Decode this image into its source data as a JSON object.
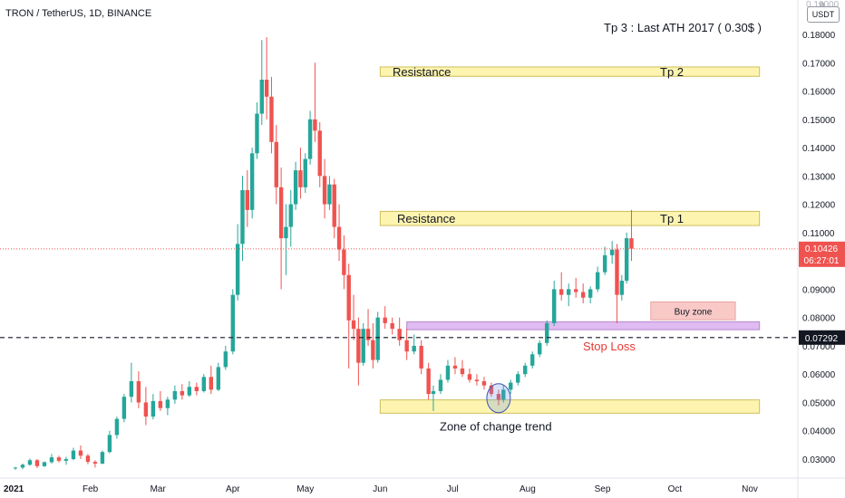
{
  "header": {
    "symbol_title": "TRON / TetherUS, 1D, BINANCE",
    "currency_badge": "USDT"
  },
  "annotations": {
    "tp3": "Tp 3 : Last ATH 2017 ( 0.30$ )",
    "resistance_top_label": "Resistance",
    "tp2": "Tp 2",
    "resistance_mid_label": "Resistance",
    "tp1": "Tp 1",
    "buy_zone": "Buy zone",
    "stop_loss": "Stop Loss",
    "zone_change": "Zone of change trend"
  },
  "colors": {
    "up": "#26a69a",
    "down": "#ef5350",
    "zone_fill": "#fdf3a8",
    "zone_stroke": "#c9b84a",
    "support_fill": "#dcb4f0",
    "buy_fill": "#f8c4c2",
    "stop_text": "#e53935",
    "last_price_bg": "#ef5350",
    "dashed_bg": "#131722"
  },
  "chart_data": {
    "type": "candlestick",
    "y_axis": {
      "min": 0.025,
      "max": 0.19,
      "ticks": [
        "0.18000",
        "0.17000",
        "0.16000",
        "0.15000",
        "0.14000",
        "0.13000",
        "0.12000",
        "0.11000",
        "0.09000",
        "0.08000",
        "0.07000",
        "0.06000",
        "0.05000",
        "0.04000",
        "0.03000"
      ],
      "top_partial_tick": "0.19000"
    },
    "x_axis": {
      "labels": [
        "2021",
        "Feb",
        "Mar",
        "Apr",
        "May",
        "Jun",
        "Jul",
        "Aug",
        "Sep",
        "Oct",
        "Nov"
      ],
      "label_dates": [
        "2021-01-01",
        "2021-02-01",
        "2021-03-01",
        "2021-04-01",
        "2021-05-01",
        "2021-06-01",
        "2021-07-01",
        "2021-08-01",
        "2021-09-01",
        "2021-10-01",
        "2021-11-01"
      ],
      "start": "2021-01-01",
      "end": "2021-11-19"
    },
    "zones": [
      {
        "name": "resistance-tp2",
        "from": 0.1652,
        "to": 0.1685,
        "start": "2021-06-01",
        "end": "2021-11-05"
      },
      {
        "name": "resistance-tp1",
        "from": 0.1125,
        "to": 0.1175,
        "start": "2021-06-01",
        "end": "2021-11-05"
      },
      {
        "name": "buy-zone",
        "from": 0.0792,
        "to": 0.0855,
        "start": "2021-09-21",
        "end": "2021-10-26"
      },
      {
        "name": "support-band",
        "from": 0.0757,
        "to": 0.0785,
        "start": "2021-06-12",
        "end": "2021-11-05"
      },
      {
        "name": "zone-of-change-trend",
        "from": 0.0462,
        "to": 0.0509,
        "start": "2021-06-01",
        "end": "2021-11-05"
      }
    ],
    "last_price": {
      "value": 0.10426,
      "label": "0.10426",
      "countdown": "06:27:01"
    },
    "dashed_level": {
      "value": 0.07292,
      "label": "0.07292"
    },
    "circle_marker": {
      "date": "2021-07-20",
      "price": 0.0515
    },
    "candles": [
      [
        "2021-01-01",
        0.0268,
        0.0272,
        0.0262,
        0.027
      ],
      [
        "2021-01-04",
        0.027,
        0.0284,
        0.0264,
        0.028
      ],
      [
        "2021-01-07",
        0.028,
        0.0302,
        0.0276,
        0.0296
      ],
      [
        "2021-01-10",
        0.0296,
        0.03,
        0.0268,
        0.0275
      ],
      [
        "2021-01-13",
        0.0275,
        0.0292,
        0.0272,
        0.0289
      ],
      [
        "2021-01-16",
        0.0289,
        0.0318,
        0.0284,
        0.0306
      ],
      [
        "2021-01-19",
        0.0306,
        0.0312,
        0.0288,
        0.0294
      ],
      [
        "2021-01-22",
        0.0294,
        0.0308,
        0.028,
        0.03
      ],
      [
        "2021-01-25",
        0.03,
        0.034,
        0.0296,
        0.033
      ],
      [
        "2021-01-28",
        0.033,
        0.0348,
        0.03,
        0.0312
      ],
      [
        "2021-01-31",
        0.0312,
        0.0318,
        0.0282,
        0.029
      ],
      [
        "2021-02-03",
        0.029,
        0.0296,
        0.027,
        0.0284
      ],
      [
        "2021-02-06",
        0.0284,
        0.033,
        0.0282,
        0.0325
      ],
      [
        "2021-02-09",
        0.0325,
        0.04,
        0.032,
        0.0385
      ],
      [
        "2021-02-12",
        0.0385,
        0.045,
        0.0372,
        0.0442
      ],
      [
        "2021-02-15",
        0.0442,
        0.053,
        0.043,
        0.052
      ],
      [
        "2021-02-18",
        0.052,
        0.064,
        0.05,
        0.0575
      ],
      [
        "2021-02-21",
        0.0575,
        0.061,
        0.048,
        0.05
      ],
      [
        "2021-02-24",
        0.05,
        0.0555,
        0.042,
        0.045
      ],
      [
        "2021-02-27",
        0.045,
        0.053,
        0.044,
        0.0505
      ],
      [
        "2021-03-02",
        0.0505,
        0.054,
        0.047,
        0.048
      ],
      [
        "2021-03-05",
        0.048,
        0.052,
        0.0455,
        0.051
      ],
      [
        "2021-03-08",
        0.051,
        0.056,
        0.0495,
        0.054
      ],
      [
        "2021-03-11",
        0.054,
        0.0565,
        0.051,
        0.0525
      ],
      [
        "2021-03-14",
        0.0525,
        0.0575,
        0.052,
        0.0555
      ],
      [
        "2021-03-17",
        0.0555,
        0.057,
        0.0525,
        0.054
      ],
      [
        "2021-03-20",
        0.054,
        0.06,
        0.0535,
        0.059
      ],
      [
        "2021-03-23",
        0.059,
        0.063,
        0.053,
        0.0545
      ],
      [
        "2021-03-26",
        0.0545,
        0.064,
        0.054,
        0.0625
      ],
      [
        "2021-03-29",
        0.0625,
        0.07,
        0.0615,
        0.068
      ],
      [
        "2021-04-01",
        0.068,
        0.09,
        0.067,
        0.088
      ],
      [
        "2021-04-03",
        0.088,
        0.113,
        0.086,
        0.106
      ],
      [
        "2021-04-05",
        0.106,
        0.13,
        0.1,
        0.125
      ],
      [
        "2021-04-07",
        0.125,
        0.132,
        0.112,
        0.118
      ],
      [
        "2021-04-09",
        0.118,
        0.14,
        0.115,
        0.138
      ],
      [
        "2021-04-11",
        0.138,
        0.156,
        0.136,
        0.152
      ],
      [
        "2021-04-13",
        0.152,
        0.178,
        0.148,
        0.164
      ],
      [
        "2021-04-15",
        0.164,
        0.179,
        0.15,
        0.158
      ],
      [
        "2021-04-17",
        0.158,
        0.165,
        0.138,
        0.142
      ],
      [
        "2021-04-19",
        0.142,
        0.148,
        0.12,
        0.126
      ],
      [
        "2021-04-21",
        0.126,
        0.133,
        0.09,
        0.108
      ],
      [
        "2021-04-23",
        0.108,
        0.12,
        0.095,
        0.112
      ],
      [
        "2021-04-25",
        0.112,
        0.125,
        0.105,
        0.12
      ],
      [
        "2021-04-27",
        0.12,
        0.135,
        0.118,
        0.132
      ],
      [
        "2021-04-29",
        0.132,
        0.14,
        0.122,
        0.126
      ],
      [
        "2021-05-01",
        0.126,
        0.138,
        0.124,
        0.136
      ],
      [
        "2021-05-03",
        0.136,
        0.153,
        0.134,
        0.15
      ],
      [
        "2021-05-05",
        0.15,
        0.17,
        0.142,
        0.146
      ],
      [
        "2021-05-07",
        0.146,
        0.149,
        0.126,
        0.13
      ],
      [
        "2021-05-09",
        0.13,
        0.136,
        0.115,
        0.12
      ],
      [
        "2021-05-11",
        0.12,
        0.13,
        0.118,
        0.127
      ],
      [
        "2021-05-13",
        0.127,
        0.129,
        0.108,
        0.112
      ],
      [
        "2021-05-15",
        0.112,
        0.12,
        0.1,
        0.104
      ],
      [
        "2021-05-17",
        0.104,
        0.109,
        0.09,
        0.095
      ],
      [
        "2021-05-19",
        0.095,
        0.099,
        0.062,
        0.079
      ],
      [
        "2021-05-21",
        0.079,
        0.088,
        0.072,
        0.076
      ],
      [
        "2021-05-23",
        0.076,
        0.08,
        0.056,
        0.064
      ],
      [
        "2021-05-25",
        0.064,
        0.078,
        0.063,
        0.076
      ],
      [
        "2021-05-27",
        0.076,
        0.083,
        0.07,
        0.072
      ],
      [
        "2021-05-29",
        0.072,
        0.078,
        0.062,
        0.065
      ],
      [
        "2021-05-31",
        0.065,
        0.082,
        0.064,
        0.08
      ],
      [
        "2021-06-03",
        0.08,
        0.084,
        0.076,
        0.078
      ],
      [
        "2021-06-06",
        0.078,
        0.08,
        0.074,
        0.076
      ],
      [
        "2021-06-09",
        0.076,
        0.08,
        0.07,
        0.072
      ],
      [
        "2021-06-12",
        0.072,
        0.076,
        0.065,
        0.068
      ],
      [
        "2021-06-15",
        0.068,
        0.074,
        0.067,
        0.07
      ],
      [
        "2021-06-18",
        0.07,
        0.072,
        0.06,
        0.062
      ],
      [
        "2021-06-21",
        0.062,
        0.064,
        0.051,
        0.053
      ],
      [
        "2021-06-23",
        0.053,
        0.056,
        0.047,
        0.054
      ],
      [
        "2021-06-26",
        0.054,
        0.06,
        0.053,
        0.058
      ],
      [
        "2021-06-29",
        0.058,
        0.065,
        0.057,
        0.063
      ],
      [
        "2021-07-02",
        0.063,
        0.066,
        0.06,
        0.062
      ],
      [
        "2021-07-05",
        0.062,
        0.065,
        0.059,
        0.06
      ],
      [
        "2021-07-08",
        0.06,
        0.062,
        0.057,
        0.058
      ],
      [
        "2021-07-11",
        0.058,
        0.06,
        0.056,
        0.0575
      ],
      [
        "2021-07-14",
        0.0575,
        0.059,
        0.0545,
        0.056
      ],
      [
        "2021-07-17",
        0.056,
        0.057,
        0.052,
        0.053
      ],
      [
        "2021-07-20",
        0.053,
        0.0545,
        0.049,
        0.051
      ],
      [
        "2021-07-22",
        0.051,
        0.056,
        0.05,
        0.0545
      ],
      [
        "2021-07-25",
        0.0545,
        0.058,
        0.053,
        0.057
      ],
      [
        "2021-07-28",
        0.057,
        0.061,
        0.056,
        0.06
      ],
      [
        "2021-07-31",
        0.06,
        0.064,
        0.059,
        0.063
      ],
      [
        "2021-08-03",
        0.063,
        0.068,
        0.062,
        0.067
      ],
      [
        "2021-08-06",
        0.067,
        0.072,
        0.066,
        0.071
      ],
      [
        "2021-08-09",
        0.071,
        0.079,
        0.07,
        0.078
      ],
      [
        "2021-08-12",
        0.078,
        0.093,
        0.077,
        0.09
      ],
      [
        "2021-08-15",
        0.09,
        0.096,
        0.086,
        0.088
      ],
      [
        "2021-08-18",
        0.088,
        0.092,
        0.084,
        0.09
      ],
      [
        "2021-08-21",
        0.09,
        0.094,
        0.087,
        0.089
      ],
      [
        "2021-08-24",
        0.089,
        0.092,
        0.085,
        0.087
      ],
      [
        "2021-08-27",
        0.087,
        0.091,
        0.085,
        0.09
      ],
      [
        "2021-08-30",
        0.09,
        0.098,
        0.089,
        0.096
      ],
      [
        "2021-09-02",
        0.096,
        0.105,
        0.095,
        0.102
      ],
      [
        "2021-09-05",
        0.102,
        0.107,
        0.099,
        0.104
      ],
      [
        "2021-09-07",
        0.104,
        0.106,
        0.078,
        0.088
      ],
      [
        "2021-09-09",
        0.088,
        0.095,
        0.086,
        0.093
      ],
      [
        "2021-09-11",
        0.093,
        0.11,
        0.092,
        0.108
      ],
      [
        "2021-09-13",
        0.108,
        0.118,
        0.1,
        0.1043
      ]
    ]
  }
}
